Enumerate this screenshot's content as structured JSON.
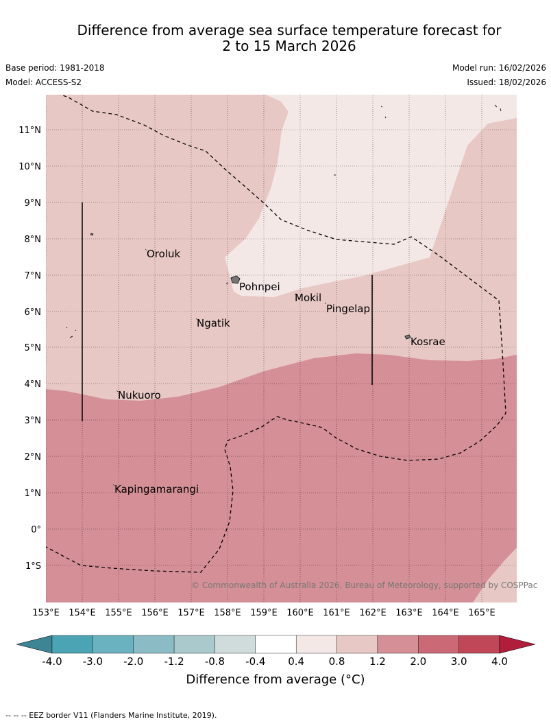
{
  "header": {
    "title_line1": "Difference from average sea surface temperature forecast for",
    "title_line2": "2 to 15 March 2026",
    "base_period": "Base period: 1981-2018",
    "model": "Model: ACCESS-S2",
    "model_run": "Model run: 16/02/2026",
    "issued": "Issued: 18/02/2026"
  },
  "map": {
    "lon_labels": [
      "153°E",
      "154°E",
      "155°E",
      "156°E",
      "157°E",
      "158°E",
      "159°E",
      "160°E",
      "161°E",
      "162°E",
      "163°E",
      "164°E",
      "165°E"
    ],
    "lat_labels": [
      "11°N",
      "10°N",
      "9°N",
      "8°N",
      "7°N",
      "6°N",
      "5°N",
      "4°N",
      "3°N",
      "2°N",
      "1°N",
      "0°",
      "1°S"
    ],
    "places": [
      {
        "name": "Oroluk",
        "lon": 155.8,
        "lat": 7.6
      },
      {
        "name": "Pohnpei",
        "lon": 158.3,
        "lat": 6.9
      },
      {
        "name": "Mokil",
        "lon": 159.8,
        "lat": 6.7
      },
      {
        "name": "Pingelap",
        "lon": 160.8,
        "lat": 6.2
      },
      {
        "name": "Ngatik",
        "lon": 157.3,
        "lat": 5.8
      },
      {
        "name": "Kosrae",
        "lon": 163.0,
        "lat": 5.3
      },
      {
        "name": "Nukuoro",
        "lon": 154.9,
        "lat": 3.9
      },
      {
        "name": "Kapingamarangi",
        "lon": 154.8,
        "lat": 1.1
      }
    ],
    "copyright": "© Commonwealth of Australia 2026, Bureau of Meteorology, supported by COSPPac",
    "fill_colors": {
      "band_0_4_0_8": "#f4e8e7",
      "band_0_8_1_2": "#e7c8c4",
      "band_1_2_2_0": "#d58f96",
      "band_2_0_3_0": "#cb6a76"
    }
  },
  "colorbar": {
    "ticks": [
      "-4.0",
      "-3.0",
      "-2.0",
      "-1.2",
      "-0.8",
      "-0.4",
      "0.4",
      "0.8",
      "1.2",
      "2.0",
      "3.0",
      "4.0"
    ],
    "colors": [
      "#3d8595",
      "#4ba4b3",
      "#6ab2c0",
      "#8bbcc5",
      "#a9c9cc",
      "#cfdcdb",
      "#ffffff",
      "#f4e8e7",
      "#e7c8c4",
      "#d58f96",
      "#cb6a76",
      "#c04757",
      "#b01e3c"
    ],
    "label": "Difference from average (°C)"
  },
  "footnote": "--  --  -- EEZ border V11 (Flanders Marine Institute, 2019)."
}
